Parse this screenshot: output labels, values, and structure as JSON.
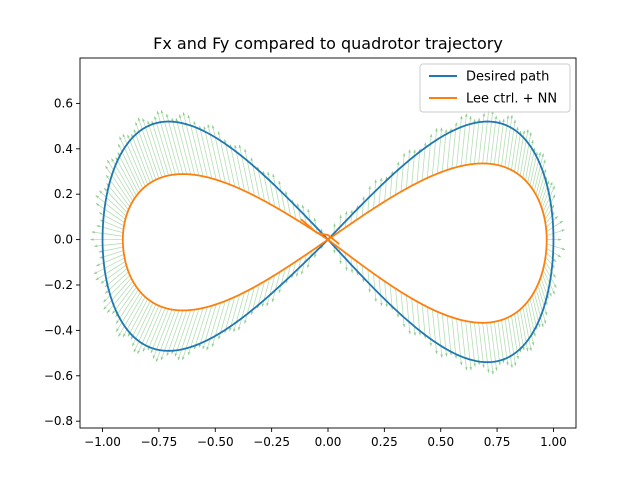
{
  "chart_data": {
    "type": "line",
    "title": "Fx and Fy compared to quadrotor trajectory",
    "xlabel": "",
    "ylabel": "",
    "xlim": [
      -1.1,
      1.1
    ],
    "ylim": [
      -0.83,
      0.8
    ],
    "xticks": [
      -1.0,
      -0.75,
      -0.5,
      -0.25,
      0.0,
      0.25,
      0.5,
      0.75,
      1.0
    ],
    "xtick_labels": [
      "−1.00",
      "−0.75",
      "−0.50",
      "−0.25",
      "0.00",
      "0.25",
      "0.50",
      "0.75",
      "1.00"
    ],
    "yticks": [
      -0.8,
      -0.6,
      -0.4,
      -0.2,
      0.0,
      0.2,
      0.4,
      0.6
    ],
    "ytick_labels": [
      "−0.8",
      "−0.6",
      "−0.4",
      "−0.2",
      "0.0",
      "0.2",
      "0.4",
      "0.6"
    ],
    "grid": false,
    "legend_position": "top-right",
    "series": [
      {
        "name": "Desired path",
        "color": "#1f77b4",
        "shape": "lemniscate",
        "x_amplitude": 1.0,
        "y_amplitude": 0.52,
        "y_amplitude_lower_left": 0.49,
        "y_amplitude_lower_right": 0.54
      },
      {
        "name": "Lee ctrl. + NN",
        "color": "#ff7f0e",
        "shape": "lemniscate",
        "x_left": -0.91,
        "x_right": 0.97,
        "y_upper_left": 0.37,
        "y_lower_left": -0.4,
        "y_upper_right": 0.43,
        "y_lower_right": -0.47,
        "transient_end": [
          0.05,
          -0.02
        ]
      },
      {
        "name": "Fx, Fy force vectors",
        "color": "#2ca02c",
        "style": "quiver",
        "opacity": 0.35,
        "magnitude_range": [
          0.06,
          0.17
        ],
        "direction": "outward from trajectory"
      }
    ]
  }
}
